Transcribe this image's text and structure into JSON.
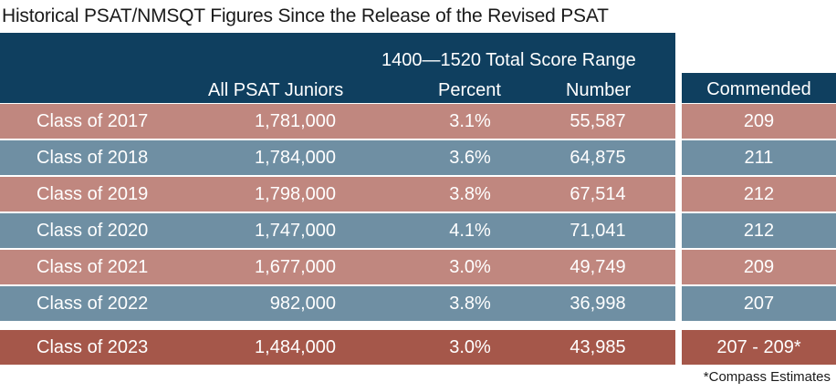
{
  "title": "Historical PSAT/NMSQT Figures Since the Release of the Revised PSAT",
  "header": {
    "group_label": "1400—1520 Total Score Range",
    "col_juniors": "All PSAT Juniors",
    "col_percent": "Percent",
    "col_number": "Number",
    "col_commended": "Commended"
  },
  "colors": {
    "header_bg": "#0f3f5f",
    "row_rose": "#c0877f",
    "row_blue": "#6f8fa3",
    "row_highlight": "#a5574a"
  },
  "footnote": "*Compass Estimates",
  "chart_data": {
    "type": "table",
    "title": "Historical PSAT/NMSQT Figures Since the Release of the Revised PSAT",
    "columns": [
      "",
      "All PSAT Juniors",
      "Percent",
      "Number",
      "Commended"
    ],
    "rows": [
      {
        "class": "Class of 2017",
        "juniors": "1,781,000",
        "percent": "3.1%",
        "number": "55,587",
        "commended": "209",
        "style": "rose"
      },
      {
        "class": "Class of 2018",
        "juniors": "1,784,000",
        "percent": "3.6%",
        "number": "64,875",
        "commended": "211",
        "style": "blue"
      },
      {
        "class": "Class of 2019",
        "juniors": "1,798,000",
        "percent": "3.8%",
        "number": "67,514",
        "commended": "212",
        "style": "rose"
      },
      {
        "class": "Class of 2020",
        "juniors": "1,747,000",
        "percent": "4.1%",
        "number": "71,041",
        "commended": "212",
        "style": "blue"
      },
      {
        "class": "Class of 2021",
        "juniors": "1,677,000",
        "percent": "3.0%",
        "number": "49,749",
        "commended": "209",
        "style": "rose"
      },
      {
        "class": "Class of 2022",
        "juniors": "982,000",
        "percent": "3.8%",
        "number": "36,998",
        "commended": "207",
        "style": "blue"
      },
      {
        "class": "Class of 2023",
        "juniors": "1,484,000",
        "percent": "3.0%",
        "number": "43,985",
        "commended": "207 - 209*",
        "style": "highlight"
      }
    ]
  }
}
